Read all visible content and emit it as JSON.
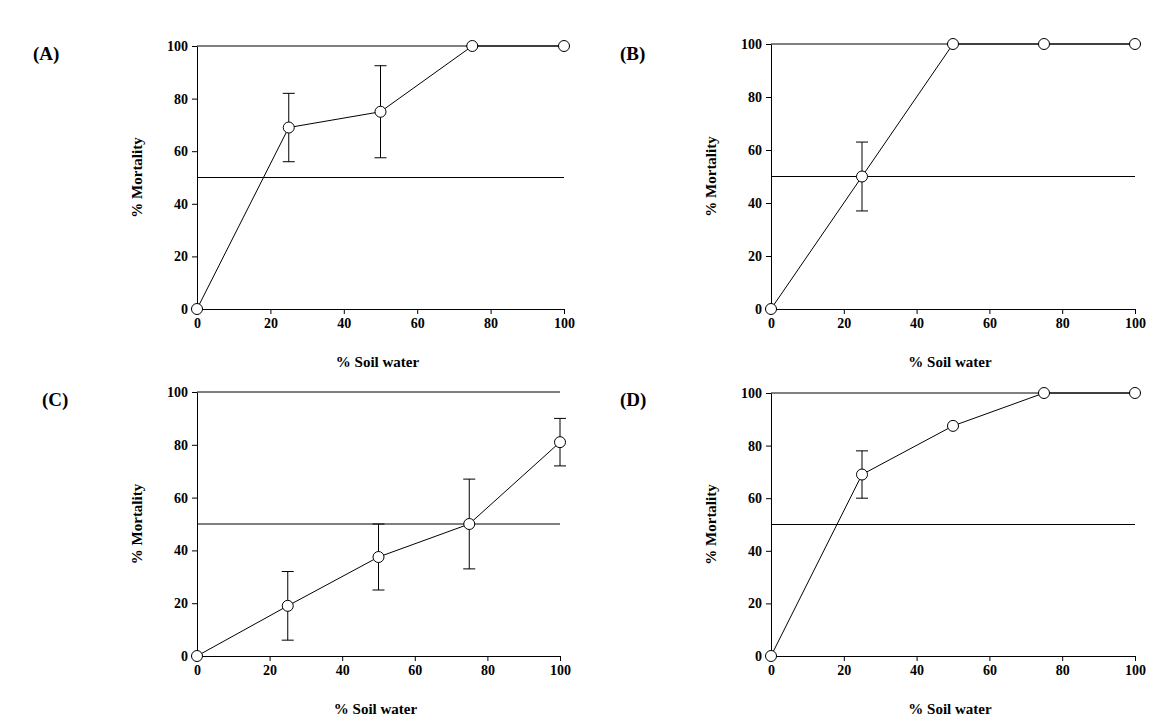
{
  "chart_data": [
    {
      "type": "line",
      "title": "(A)",
      "x_label": "% Soil water",
      "y_label": "% Mortality",
      "x": [
        0,
        25,
        50,
        75,
        100
      ],
      "values": [
        0,
        69,
        75,
        100,
        100
      ],
      "errors": [
        0,
        13,
        17.5,
        0,
        0
      ],
      "threshold": 50,
      "color": "#000000",
      "marker": "circle",
      "xlim": [
        0,
        100
      ],
      "xticks": [
        0,
        20,
        40,
        60,
        80,
        100
      ],
      "ylim": [
        0,
        100
      ],
      "yticks": [
        0,
        20,
        40,
        60,
        80,
        100
      ]
    },
    {
      "type": "line",
      "title": "(B)",
      "x_label": "% Soil water",
      "y_label": "% Mortality",
      "x": [
        0,
        25,
        50,
        75,
        100
      ],
      "values": [
        0,
        50,
        100,
        100,
        100
      ],
      "errors": [
        0,
        13,
        0,
        0,
        0
      ],
      "threshold": 50,
      "color": "#000000",
      "marker": "circle",
      "xlim": [
        0,
        100
      ],
      "xticks": [
        0,
        20,
        40,
        60,
        80,
        100
      ],
      "ylim": [
        0,
        100
      ],
      "yticks": [
        0,
        20,
        40,
        60,
        80,
        100
      ]
    },
    {
      "type": "line",
      "title": "(C)",
      "x_label": "% Soil water",
      "y_label": "% Mortality",
      "x": [
        0,
        25,
        50,
        75,
        100
      ],
      "values": [
        0,
        19,
        37.5,
        50,
        81
      ],
      "errors": [
        0,
        13,
        12.5,
        17,
        9
      ],
      "threshold": 50,
      "color": "#000000",
      "marker": "circle",
      "xlim": [
        0,
        100
      ],
      "xticks": [
        0,
        20,
        40,
        60,
        80,
        100
      ],
      "ylim": [
        0,
        100
      ],
      "yticks": [
        0,
        20,
        40,
        60,
        80,
        100
      ]
    },
    {
      "type": "line",
      "title": "(D)",
      "x_label": "% Soil water",
      "y_label": "% Mortality",
      "x": [
        0,
        25,
        50,
        75,
        100
      ],
      "values": [
        0,
        69,
        87.5,
        100,
        100
      ],
      "errors": [
        0,
        9,
        0,
        0,
        0
      ],
      "threshold": 50,
      "color": "#000000",
      "marker": "circle",
      "xlim": [
        0,
        100
      ],
      "xticks": [
        0,
        20,
        40,
        60,
        80,
        100
      ],
      "ylim": [
        0,
        100
      ],
      "yticks": [
        0,
        20,
        40,
        60,
        80,
        100
      ]
    }
  ]
}
